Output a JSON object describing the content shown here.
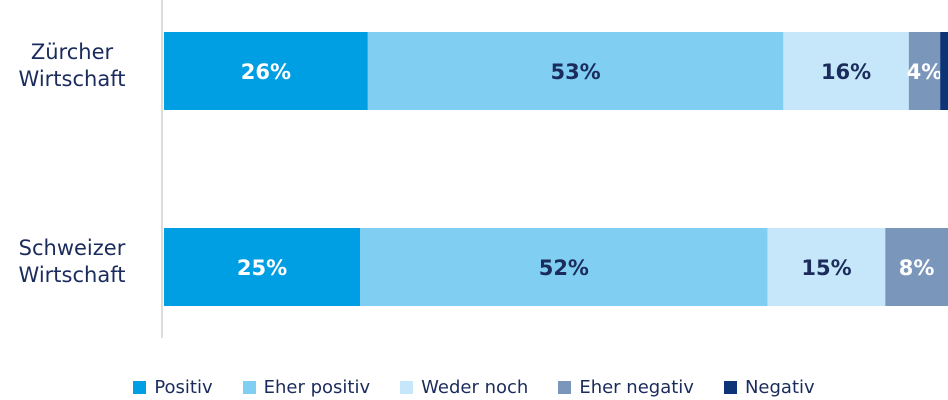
{
  "chart_data": {
    "type": "bar",
    "orientation": "horizontal",
    "stacked": true,
    "categories": [
      [
        "Zürcher",
        "Wirtschaft"
      ],
      [
        "Schweizer",
        "Wirtschaft"
      ]
    ],
    "series": [
      {
        "name": "Positiv",
        "color": "#009fe3",
        "values": [
          26,
          25
        ],
        "labels": [
          "26%",
          "25%"
        ],
        "label_color": "#ffffff"
      },
      {
        "name": "Eher positiv",
        "color": "#80cff3",
        "values": [
          53,
          52
        ],
        "labels": [
          "53%",
          "52%"
        ],
        "label_color": "#1a2b5c"
      },
      {
        "name": "Weder noch",
        "color": "#c6e7f9",
        "values": [
          16,
          15
        ],
        "labels": [
          "16%",
          "15%"
        ],
        "label_color": "#1a2b5c"
      },
      {
        "name": "Eher negativ",
        "color": "#7b96bb",
        "values": [
          4,
          8
        ],
        "labels": [
          "4%",
          "8%"
        ],
        "label_color": "#ffffff"
      },
      {
        "name": "Negativ",
        "color": "#0c3477",
        "values": [
          1,
          0
        ],
        "labels": [
          "",
          ""
        ],
        "label_color": "#ffffff"
      }
    ],
    "xlim": [
      0,
      100
    ],
    "grid": false,
    "legend_position": "bottom"
  }
}
